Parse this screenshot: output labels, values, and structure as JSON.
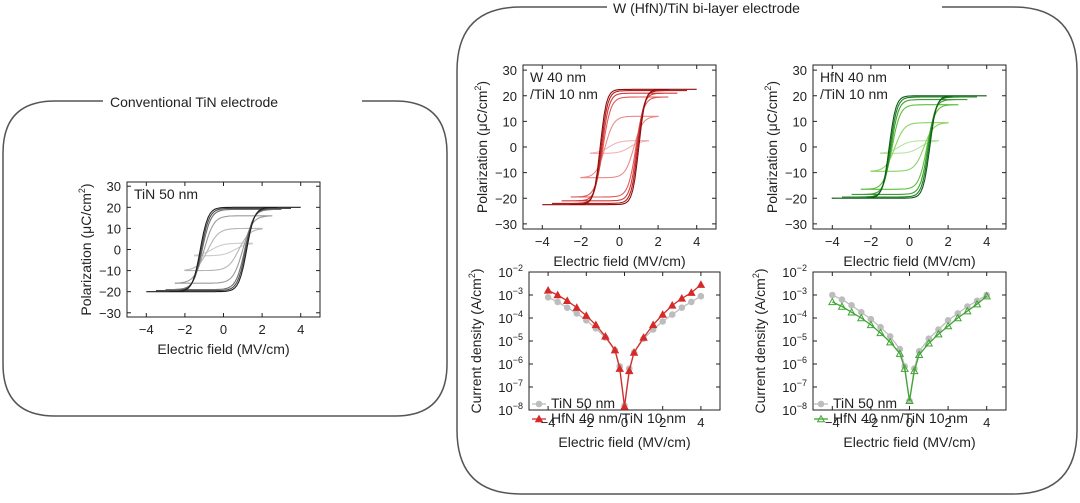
{
  "groups": {
    "left_title": "Conventional TiN electrode",
    "right_title": "W (HfN)/TiN bi-layer electrode"
  },
  "chart_data": [
    {
      "id": "tin-pe",
      "type": "line",
      "subtype": "P-E hysteresis loops",
      "inset_label": [
        "TiN 50 nm"
      ],
      "xlabel": "Electric field (MV/cm)",
      "ylabel": "Polarization (μC/cm2)",
      "xlim": [
        -5,
        5
      ],
      "ylim": [
        -32,
        32
      ],
      "xticks": [
        -4,
        -2,
        0,
        2,
        4
      ],
      "yticks": [
        30,
        20,
        10,
        0,
        -10,
        -20,
        -30
      ],
      "loops": [
        {
          "amplitude": 4.0,
          "ps": 20,
          "ec": 1.2,
          "w": 0.4,
          "color": "#1e1e1e"
        },
        {
          "amplitude": 3.5,
          "ps": 19.5,
          "ec": 1.15,
          "w": 0.42,
          "color": "#4a4a4a"
        },
        {
          "amplitude": 3.0,
          "ps": 19,
          "ec": 1.1,
          "w": 0.45,
          "color": "#6e6e6e"
        },
        {
          "amplitude": 2.5,
          "ps": 16,
          "ec": 1.0,
          "w": 0.5,
          "color": "#9a9a9a"
        },
        {
          "amplitude": 2.0,
          "ps": 10,
          "ec": 0.8,
          "w": 0.55,
          "color": "#b5b5b5"
        },
        {
          "amplitude": 1.5,
          "ps": 3,
          "ec": 0.6,
          "w": 0.6,
          "color": "#cccccc"
        }
      ]
    },
    {
      "id": "w-pe",
      "type": "line",
      "subtype": "P-E hysteresis loops",
      "inset_label": [
        "W 40 nm",
        "/TiN 10 nm"
      ],
      "xlabel": "Electric field (MV/cm)",
      "ylabel": "Polarization (μC/cm2)",
      "xlim": [
        -5,
        5
      ],
      "ylim": [
        -32,
        32
      ],
      "xticks": [
        -4,
        -2,
        0,
        2,
        4
      ],
      "yticks": [
        30,
        20,
        10,
        0,
        -10,
        -20,
        -30
      ],
      "loops": [
        {
          "amplitude": 4.0,
          "ps": 22.5,
          "ec": 1.0,
          "w": 0.32,
          "color": "#8b0d0d"
        },
        {
          "amplitude": 3.5,
          "ps": 22.0,
          "ec": 0.95,
          "w": 0.34,
          "color": "#b11d1d"
        },
        {
          "amplitude": 3.0,
          "ps": 21.0,
          "ec": 0.9,
          "w": 0.36,
          "color": "#d23a3a"
        },
        {
          "amplitude": 2.5,
          "ps": 19.5,
          "ec": 0.85,
          "w": 0.4,
          "color": "#e25a5a"
        },
        {
          "amplitude": 2.0,
          "ps": 12.0,
          "ec": 0.75,
          "w": 0.45,
          "color": "#ec8a8a"
        },
        {
          "amplitude": 1.5,
          "ps": 2.5,
          "ec": 0.55,
          "w": 0.55,
          "color": "#f3b3b3"
        }
      ]
    },
    {
      "id": "hfn-pe",
      "type": "line",
      "subtype": "P-E hysteresis loops",
      "inset_label": [
        "HfN 40 nm",
        "/TiN 10 nm"
      ],
      "xlabel": "Electric field (MV/cm)",
      "ylabel": "Polarization (μC/cm2)",
      "xlim": [
        -5,
        5
      ],
      "ylim": [
        -32,
        32
      ],
      "xticks": [
        -4,
        -2,
        0,
        2,
        4
      ],
      "yticks": [
        30,
        20,
        10,
        0,
        -10,
        -20,
        -30
      ],
      "loops": [
        {
          "amplitude": 4.0,
          "ps": 20.0,
          "ec": 1.05,
          "w": 0.34,
          "color": "#0d5a16"
        },
        {
          "amplitude": 3.5,
          "ps": 19.5,
          "ec": 1.0,
          "w": 0.36,
          "color": "#1d7d24"
        },
        {
          "amplitude": 3.0,
          "ps": 18.5,
          "ec": 0.95,
          "w": 0.38,
          "color": "#3a9e2a"
        },
        {
          "amplitude": 2.5,
          "ps": 16.5,
          "ec": 0.9,
          "w": 0.42,
          "color": "#5fbf3a"
        },
        {
          "amplitude": 2.0,
          "ps": 9.5,
          "ec": 0.75,
          "w": 0.48,
          "color": "#8bd466"
        },
        {
          "amplitude": 1.5,
          "ps": 2.5,
          "ec": 0.55,
          "w": 0.55,
          "color": "#b6e6a0"
        }
      ]
    },
    {
      "id": "w-jv",
      "type": "line",
      "subtype": "current density, log scale",
      "xlabel": "Electric field (MV/cm)",
      "ylabel": "Current density (A/cm2)",
      "xlim": [
        -5,
        5
      ],
      "ylog_range": [
        -8,
        -2
      ],
      "xticks": [
        -4,
        -2,
        0,
        2,
        4
      ],
      "yticks_exp": [
        -2,
        -3,
        -4,
        -5,
        -6,
        -7,
        -8
      ],
      "ytick_base": "10",
      "series": [
        {
          "name": "TiN 50 nm",
          "color": "#bdbdbd",
          "marker": "circle",
          "x": [
            -4,
            -3.5,
            -3,
            -2.5,
            -2,
            -1.5,
            -1,
            -0.5,
            -0.25,
            0,
            0.25,
            0.5,
            1,
            1.5,
            2,
            2.5,
            3,
            3.5,
            4
          ],
          "log_y": [
            -3.1,
            -3.3,
            -3.55,
            -3.8,
            -4.1,
            -4.45,
            -4.85,
            -5.4,
            -6.1,
            -7.8,
            -6.2,
            -5.5,
            -4.9,
            -4.5,
            -4.15,
            -3.85,
            -3.55,
            -3.3,
            -3.05
          ]
        },
        {
          "name": "HfN 40 nm/TiN 10 nm",
          "color": "#d62a2a",
          "marker": "triangle",
          "x": [
            -4,
            -3.5,
            -3,
            -2.5,
            -2,
            -1.5,
            -1,
            -0.5,
            -0.25,
            0,
            0.25,
            0.5,
            1,
            1.5,
            2,
            2.5,
            3,
            3.5,
            4
          ],
          "log_y": [
            -2.8,
            -3.0,
            -3.25,
            -3.55,
            -3.9,
            -4.3,
            -4.8,
            -5.4,
            -6.2,
            -7.85,
            -6.3,
            -5.5,
            -4.85,
            -4.3,
            -3.85,
            -3.45,
            -3.15,
            -2.9,
            -2.55
          ]
        }
      ]
    },
    {
      "id": "hfn-jv",
      "type": "line",
      "subtype": "current density, log scale",
      "xlabel": "Electric field (MV/cm)",
      "ylabel": "Current density (A/cm2)",
      "xlim": [
        -5,
        5
      ],
      "ylog_range": [
        -8,
        -2
      ],
      "xticks": [
        -4,
        -2,
        0,
        2,
        4
      ],
      "yticks_exp": [
        -2,
        -3,
        -4,
        -5,
        -6,
        -7,
        -8
      ],
      "ytick_base": "10",
      "series": [
        {
          "name": "TiN 50 nm",
          "color": "#bdbdbd",
          "marker": "circle",
          "x": [
            -4,
            -3.5,
            -3,
            -2.5,
            -2,
            -1.5,
            -1,
            -0.5,
            -0.25,
            0,
            0.25,
            0.5,
            1,
            1.5,
            2,
            2.5,
            3,
            3.5,
            4
          ],
          "log_y": [
            -3.0,
            -3.2,
            -3.45,
            -3.75,
            -4.05,
            -4.4,
            -4.8,
            -5.35,
            -6.1,
            -7.6,
            -6.2,
            -5.45,
            -4.9,
            -4.5,
            -4.1,
            -3.8,
            -3.5,
            -3.25,
            -3.0
          ]
        },
        {
          "name": "HfN 40 nm/TiN 10 nm",
          "color": "#3fa534",
          "marker": "triangle",
          "x": [
            -4,
            -3.5,
            -3,
            -2.5,
            -2,
            -1.5,
            -1,
            -0.5,
            -0.25,
            0,
            0.25,
            0.5,
            1,
            1.5,
            2,
            2.5,
            3,
            3.5,
            4
          ],
          "log_y": [
            -3.3,
            -3.5,
            -3.75,
            -4.0,
            -4.3,
            -4.65,
            -5.05,
            -5.55,
            -6.2,
            -7.6,
            -6.3,
            -5.6,
            -5.1,
            -4.7,
            -4.35,
            -4.0,
            -3.7,
            -3.4,
            -3.05
          ]
        }
      ]
    }
  ]
}
